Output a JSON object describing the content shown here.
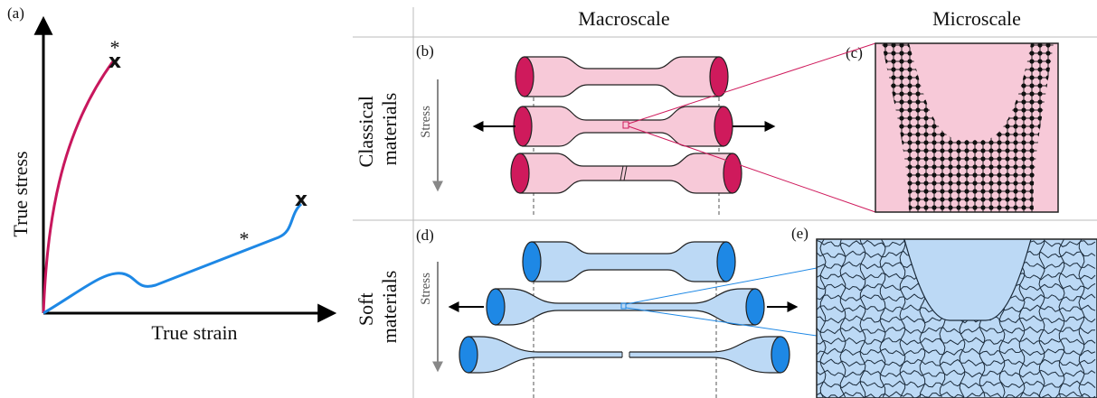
{
  "panel_a": {
    "label": "(a)",
    "x_label": "True strain",
    "y_label": "True stress",
    "red_curve": {
      "yield": "*",
      "failure": "x"
    },
    "blue_curve": {
      "yield": "*",
      "failure": "x"
    }
  },
  "columns": [
    "Macroscale",
    "Microscale"
  ],
  "rows": [
    {
      "label_lines": [
        "Classical",
        "materials"
      ],
      "stress": "Stress",
      "panels": [
        "(b)",
        "(c)"
      ]
    },
    {
      "label_lines": [
        "Soft",
        "materials"
      ],
      "stress": "Stress",
      "panels": [
        "(d)",
        "(e)"
      ]
    }
  ]
}
